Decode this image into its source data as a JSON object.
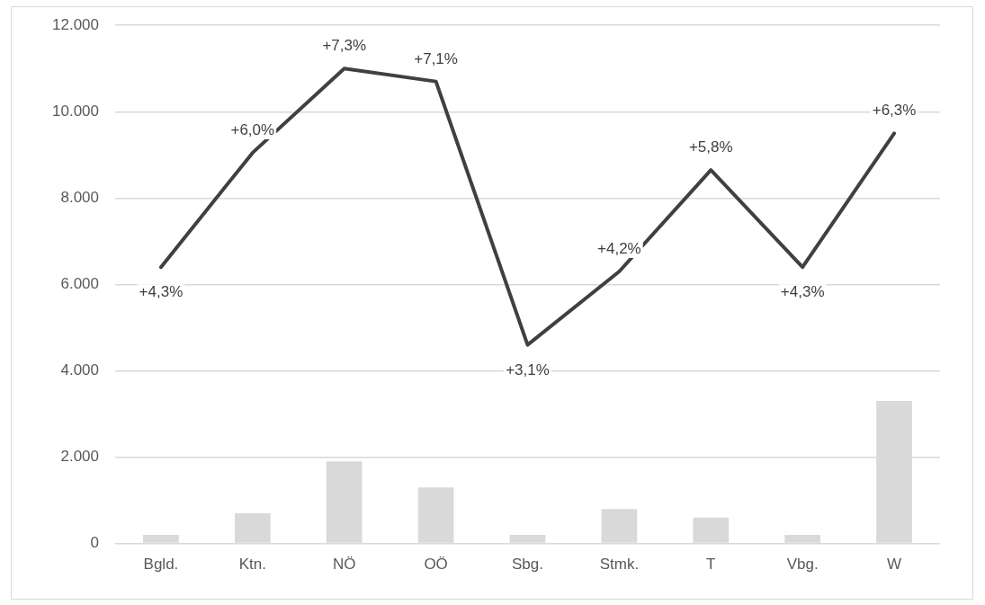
{
  "chart_data": {
    "type": "bar",
    "categories": [
      "Bgld.",
      "Ktn.",
      "NÖ",
      "OÖ",
      "Sbg.",
      "Stmk.",
      "T",
      "Vbg.",
      "W"
    ],
    "series": [
      {
        "color": "#d9d9d9",
        "values": [
          200,
          700,
          1900,
          1300,
          200,
          800,
          600,
          200,
          3300
        ]
      },
      {
        "type": "line",
        "color": "#404040",
        "marker": "none",
        "values": [
          6400,
          9050,
          11000,
          10700,
          4600,
          6300,
          8650,
          6400,
          9500
        ]
      }
    ],
    "ylim": [
      0,
      12000
    ],
    "yticks": [
      {
        "value": 0,
        "label": "0"
      },
      {
        "value": 2000,
        "label": "2.000"
      },
      {
        "value": 4000,
        "label": "4.000"
      },
      {
        "value": 6000,
        "label": "6.000"
      },
      {
        "value": 8000,
        "label": "8.000"
      },
      {
        "value": 10000,
        "label": "10.000"
      },
      {
        "value": 12000,
        "label": "12.000"
      }
    ],
    "annotations": [
      {
        "text": "+4,3%",
        "x": "Bgld.",
        "y": 6400
      },
      {
        "text": "+6,0%",
        "x": "Ktn.",
        "y": 9050
      },
      {
        "text": "+7,3%",
        "x": "NÖ",
        "y": 11000
      },
      {
        "text": "+7,1%",
        "x": "OÖ",
        "y": 10700
      },
      {
        "text": "+3,1%",
        "x": "Sbg.",
        "y": 4600
      },
      {
        "text": "+4,2%",
        "x": "Stmk.",
        "y": 6300
      },
      {
        "text": "+5,8%",
        "x": "T",
        "y": 8650
      },
      {
        "text": "+4,3%",
        "x": "Vbg.",
        "y": 6400
      },
      {
        "text": "+6,3%",
        "x": "W",
        "y": 9500
      }
    ],
    "grid": "y",
    "legend": false
  }
}
